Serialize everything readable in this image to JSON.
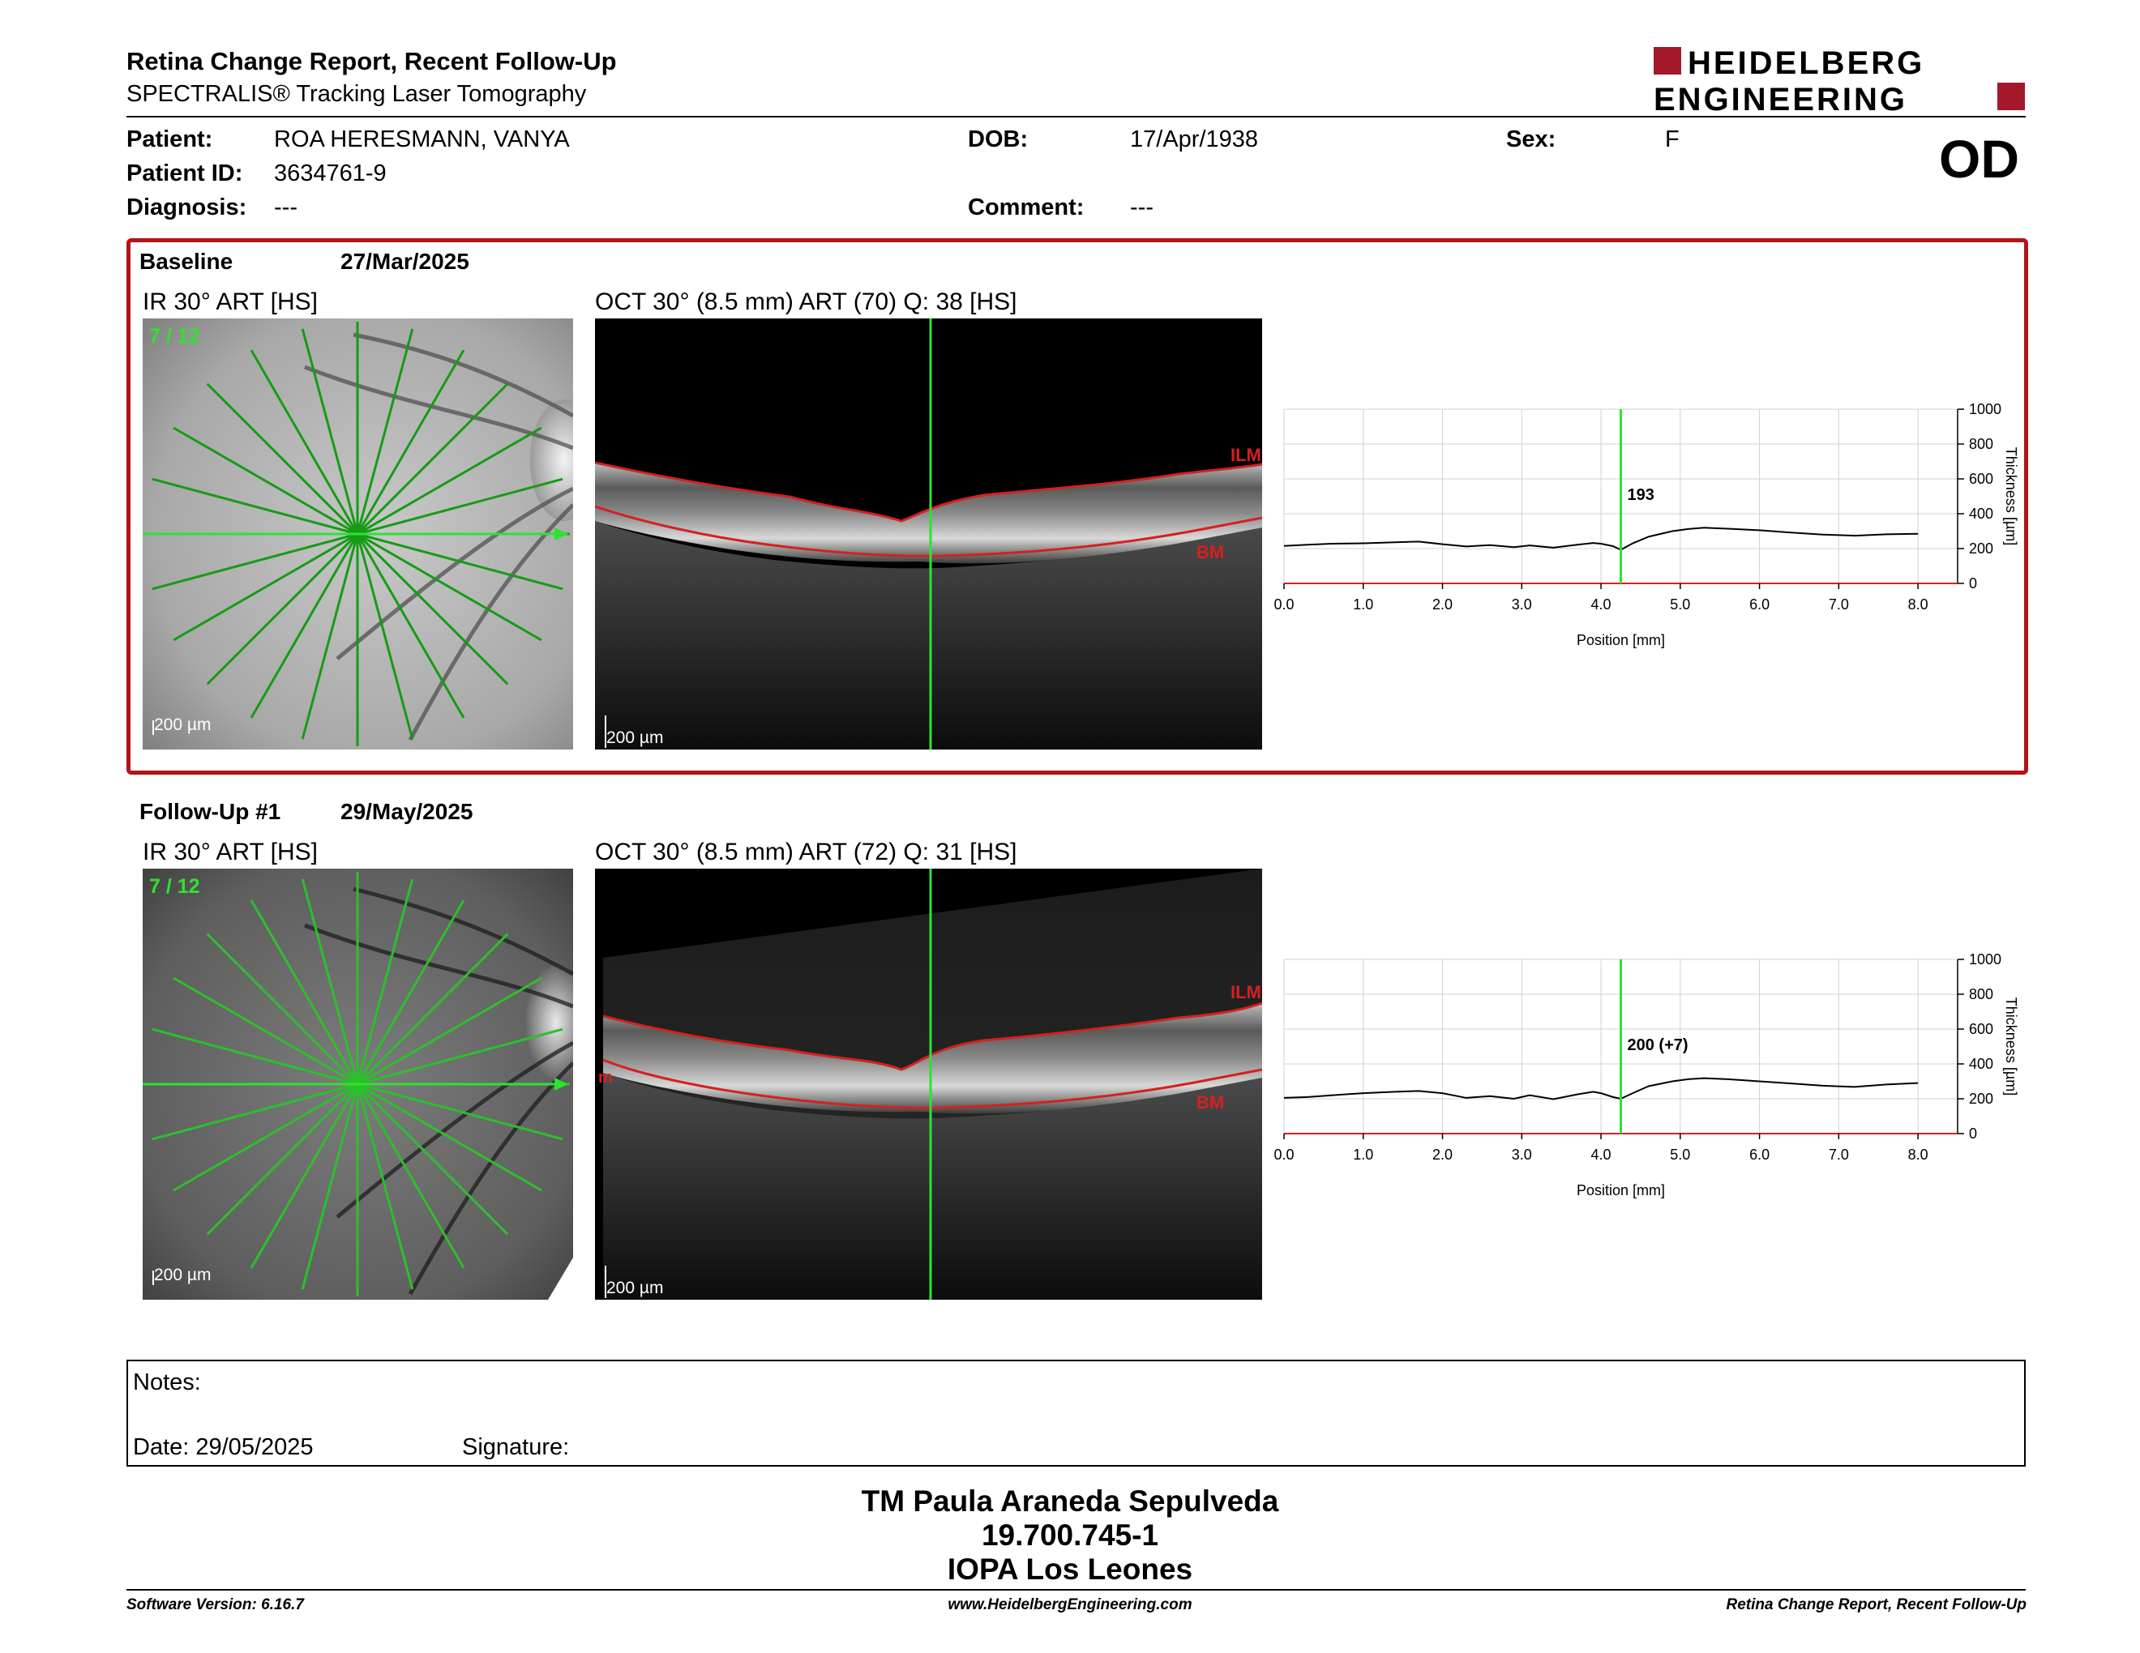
{
  "header": {
    "title": "Retina Change Report, Recent Follow-Up",
    "subtitle": "SPECTRALIS® Tracking Laser Tomography",
    "logo_line1": "HEIDELBERG",
    "logo_line2": "ENGINEERING",
    "eye": "OD"
  },
  "patient": {
    "name_label": "Patient:",
    "name": "ROA HERESMANN, VANYA",
    "id_label": "Patient ID:",
    "id": "3634761-9",
    "diagnosis_label": "Diagnosis:",
    "diagnosis": "---",
    "dob_label": "DOB:",
    "dob": "17/Apr/1938",
    "comment_label": "Comment:",
    "comment": "---",
    "sex_label": "Sex:",
    "sex": "F"
  },
  "exams": [
    {
      "label": "Baseline",
      "date": "27/Mar/2025",
      "ir_title": "IR 30° ART [HS]",
      "ir_counter": "7 / 12",
      "ir_scale": "200 µm",
      "oct_title": "OCT 30° (8.5 mm) ART (70) Q: 38 [HS]",
      "oct_scale": "200 µm",
      "ilm_label": "ILM",
      "bm_label": "BM",
      "edge_label": ""
    },
    {
      "label": "Follow-Up #1",
      "date": "29/May/2025",
      "ir_title": "IR 30° ART [HS]",
      "ir_counter": "7 / 12",
      "ir_scale": "200 µm",
      "oct_title": "OCT 30° (8.5 mm) ART (72) Q: 31 [HS]",
      "oct_scale": "200 µm",
      "ilm_label": "ILM",
      "bm_label": "BM",
      "edge_label": "m"
    }
  ],
  "chart_data": [
    {
      "type": "line",
      "xlabel": "Position [mm]",
      "ylabel": "Thickness [µm]",
      "xlim": [
        0,
        8.5
      ],
      "ylim": [
        0,
        1000
      ],
      "xticks": [
        "0.0",
        "1.0",
        "2.0",
        "3.0",
        "4.0",
        "5.0",
        "6.0",
        "7.0",
        "8.0"
      ],
      "yticks": [
        "0",
        "200",
        "400",
        "600",
        "800",
        "1000"
      ],
      "cursor_x": 4.25,
      "annotation": "193",
      "grid": true,
      "series": [
        {
          "x": [
            0,
            0.3,
            0.6,
            1.0,
            1.4,
            1.7,
            2.0,
            2.3,
            2.6,
            2.9,
            3.1,
            3.4,
            3.7,
            3.9,
            4.0,
            4.15,
            4.25,
            4.4,
            4.6,
            4.9,
            5.1,
            5.3,
            5.6,
            6.0,
            6.4,
            6.8,
            7.2,
            7.6,
            8.0
          ],
          "y": [
            215,
            222,
            228,
            230,
            236,
            240,
            225,
            212,
            220,
            208,
            218,
            205,
            222,
            232,
            228,
            214,
            193,
            230,
            268,
            300,
            312,
            320,
            314,
            305,
            292,
            280,
            274,
            282,
            285
          ]
        }
      ]
    },
    {
      "type": "line",
      "xlabel": "Position [mm]",
      "ylabel": "Thickness [µm]",
      "xlim": [
        0,
        8.5
      ],
      "ylim": [
        0,
        1000
      ],
      "xticks": [
        "0.0",
        "1.0",
        "2.0",
        "3.0",
        "4.0",
        "5.0",
        "6.0",
        "7.0",
        "8.0"
      ],
      "yticks": [
        "0",
        "200",
        "400",
        "600",
        "800",
        "1000"
      ],
      "cursor_x": 4.25,
      "annotation": "200 (+7)",
      "grid": true,
      "series": [
        {
          "x": [
            0,
            0.3,
            0.6,
            1.0,
            1.4,
            1.7,
            2.0,
            2.3,
            2.6,
            2.9,
            3.1,
            3.4,
            3.7,
            3.9,
            4.0,
            4.15,
            4.25,
            4.4,
            4.6,
            4.9,
            5.1,
            5.3,
            5.6,
            6.0,
            6.4,
            6.8,
            7.2,
            7.6,
            8.0
          ],
          "y": [
            205,
            210,
            220,
            232,
            240,
            245,
            232,
            205,
            215,
            200,
            220,
            198,
            225,
            240,
            232,
            210,
            200,
            232,
            272,
            300,
            312,
            318,
            312,
            300,
            288,
            275,
            268,
            282,
            290
          ]
        }
      ]
    }
  ],
  "notes": {
    "notes_label": "Notes:",
    "date_label": "Date: 29/05/2025",
    "signature_label": "Signature:"
  },
  "operator": {
    "name": "TM Paula Araneda Sepulveda",
    "id": "19.700.745-1",
    "institution": "IOPA Los Leones"
  },
  "footer": {
    "software": "Software Version: 6.16.7",
    "url": "www.HeidelbergEngineering.com",
    "report": "Retina Change Report, Recent Follow-Up"
  },
  "colors": {
    "frame_red": "#b01419",
    "logo_red": "#a3182b",
    "scan_green": "#2ee32e",
    "segmentation_red": "#d62020"
  }
}
